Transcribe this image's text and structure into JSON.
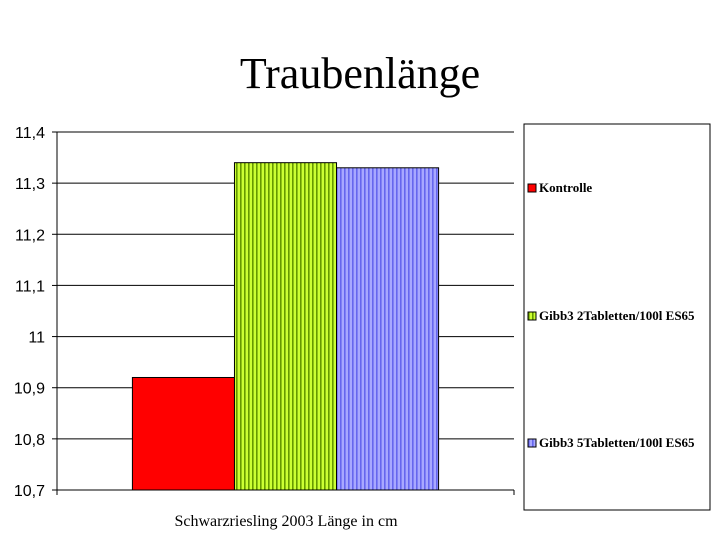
{
  "chart_data": {
    "type": "bar",
    "title": "Traubenlänge",
    "xlabel": "Schwarzriesling 2003 Länge in cm",
    "ylabel": "",
    "categories": [
      "Schwarzriesling 2003 Länge in cm"
    ],
    "series": [
      {
        "name": "Kontrolle",
        "values": [
          10.92
        ],
        "color": "#ff0000",
        "pattern": "solid"
      },
      {
        "name": "Gibb3 2Tabletten/100l ES65",
        "values": [
          11.34
        ],
        "color": "#ccff33",
        "pattern": "vertical-stripes-green"
      },
      {
        "name": "Gibb3 5Tabletten/100l ES65",
        "values": [
          11.33
        ],
        "color": "#9999ff",
        "pattern": "vertical-stripes-blue"
      }
    ],
    "ylim": [
      10.7,
      11.4
    ],
    "yticks": [
      10.7,
      10.8,
      10.9,
      11.0,
      11.1,
      11.2,
      11.3,
      11.4
    ],
    "ytick_labels": [
      "10,7",
      "10,8",
      "10,9",
      "11",
      "11,1",
      "11,2",
      "11,3",
      "11,4"
    ],
    "grid": true,
    "legend_position": "right"
  }
}
